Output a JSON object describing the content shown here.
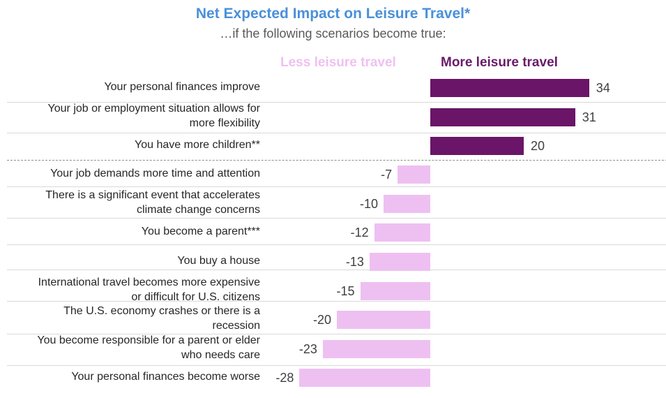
{
  "chart_data": {
    "type": "bar",
    "orientation": "horizontal",
    "title": "Net Expected Impact on Leisure Travel*",
    "subtitle": "…if the following scenarios become true:",
    "legend": {
      "negative": "Less leisure travel",
      "positive": "More leisure travel"
    },
    "colors": {
      "positive": "#6a1567",
      "negative": "#eec0f2",
      "title": "#4a90d9"
    },
    "categories": [
      "Your personal finances improve",
      "Your job or employment situation allows for more flexibility",
      "You have more children**",
      "Your job demands more time and attention",
      "There is a significant event that accelerates climate change concerns",
      "You become a parent***",
      "You buy a house",
      "International travel becomes more expensive or difficult for U.S. citizens",
      "The U.S. economy crashes or there is a recession",
      "You become responsible for a parent or elder who needs care",
      "Your personal finances become worse"
    ],
    "category_lines": [
      [
        "Your personal finances improve"
      ],
      [
        "Your job or employment situation allows for",
        "more flexibility"
      ],
      [
        "You have more children**"
      ],
      [
        "Your job demands more time and attention"
      ],
      [
        "There is a significant event that accelerates",
        "climate change concerns"
      ],
      [
        "You become a parent***"
      ],
      [
        "You buy a house"
      ],
      [
        "International travel becomes more expensive",
        "or difficult for U.S. citizens"
      ],
      [
        "The U.S. economy crashes or there is a",
        "recession"
      ],
      [
        "You become responsible for a parent or elder",
        "who needs care"
      ],
      [
        "Your personal finances become worse"
      ]
    ],
    "values": [
      34,
      31,
      20,
      -7,
      -10,
      -12,
      -13,
      -15,
      -20,
      -23,
      -28
    ],
    "value_labels": [
      "34",
      "31",
      "20",
      "-7",
      "-10",
      "-12",
      "-13",
      "-15",
      "-20",
      "-23",
      "-28"
    ],
    "xlim": [
      -28,
      34
    ],
    "group_divider_after_index": 2
  }
}
